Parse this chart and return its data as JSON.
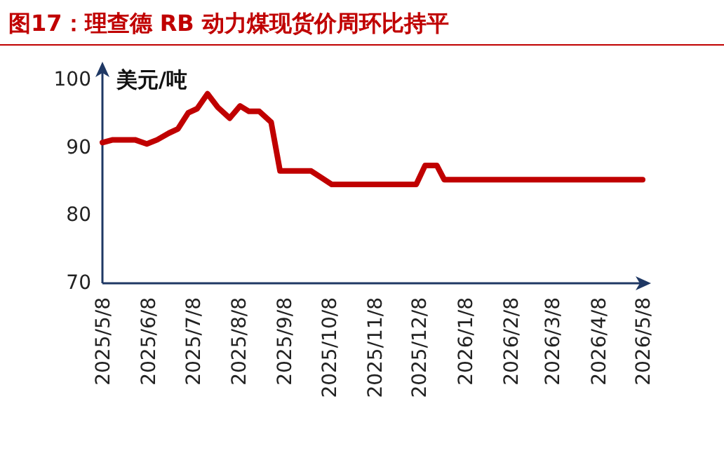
{
  "chart_data": {
    "type": "line",
    "title": "图17：理查德 RB 动力煤现货价周环比持平",
    "ylabel": "美元/吨",
    "color": "#c00000",
    "marker": "none",
    "line_style": "solid",
    "grid": false,
    "x": [
      "2025-05-08",
      "2025-05-15",
      "2025-05-30",
      "2025-06-07",
      "2025-06-14",
      "2025-06-22",
      "2025-06-28",
      "2025-07-05",
      "2025-07-11",
      "2025-07-18",
      "2025-07-25",
      "2025-08-02",
      "2025-08-09",
      "2025-08-15",
      "2025-08-22",
      "2025-08-30",
      "2025-09-05",
      "2025-09-26",
      "2025-10-10",
      "2025-12-06",
      "2025-12-12",
      "2025-12-20",
      "2025-12-25",
      "2026-05-08"
    ],
    "values": [
      90.8,
      91.2,
      91.2,
      90.6,
      91.2,
      92.2,
      92.8,
      95.2,
      95.8,
      98.0,
      96.0,
      94.4,
      96.2,
      95.4,
      95.4,
      93.8,
      86.6,
      86.6,
      84.6,
      84.6,
      87.4,
      87.4,
      85.3,
      85.3
    ],
    "xlim": [
      "2025-05-08",
      "2026-05-08"
    ],
    "xticks": [
      {
        "value": "2025-05-08",
        "label": "2025/5/8"
      },
      {
        "value": "2025-06-08",
        "label": "2025/6/8"
      },
      {
        "value": "2025-07-08",
        "label": "2025/7/8"
      },
      {
        "value": "2025-08-08",
        "label": "2025/8/8"
      },
      {
        "value": "2025-09-08",
        "label": "2025/9/8"
      },
      {
        "value": "2025-10-08",
        "label": "2025/10/8"
      },
      {
        "value": "2025-11-08",
        "label": "2025/11/8"
      },
      {
        "value": "2025-12-08",
        "label": "2025/12/8"
      },
      {
        "value": "2026-01-08",
        "label": "2026/1/8"
      },
      {
        "value": "2026-02-08",
        "label": "2026/2/8"
      },
      {
        "value": "2026-03-08",
        "label": "2026/3/8"
      },
      {
        "value": "2026-04-08",
        "label": "2026/4/8"
      },
      {
        "value": "2026-05-08",
        "label": "2026/5/8"
      }
    ],
    "ylim": [
      70,
      101.5
    ],
    "yticks": [
      70,
      80,
      90,
      100
    ]
  }
}
